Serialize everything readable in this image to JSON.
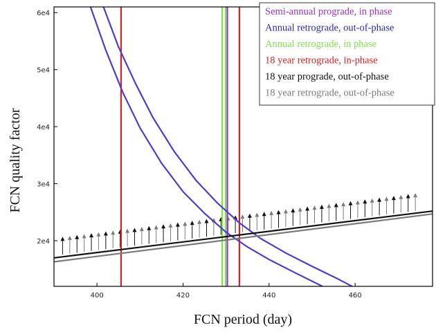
{
  "chart_data": {
    "type": "line",
    "xlabel": "FCN period (day)",
    "ylabel": "FCN quality factor",
    "xlim": [
      390,
      478
    ],
    "ylim": [
      12000,
      61000
    ],
    "x_ticks": [
      {
        "value": 400,
        "label": "400"
      },
      {
        "value": 420,
        "label": "420"
      },
      {
        "value": 440,
        "label": "440"
      },
      {
        "value": 460,
        "label": "460"
      }
    ],
    "y_ticks": [
      {
        "value": 20000,
        "label": "2e4"
      },
      {
        "value": 30000,
        "label": "3e4"
      },
      {
        "value": 40000,
        "label": "4e4"
      },
      {
        "value": 50000,
        "label": "5e4"
      },
      {
        "value": 60000,
        "label": "6e4"
      }
    ],
    "legend_position": "top-right",
    "legend": [
      {
        "label": "Semi-annual prograde, in phase",
        "color": "#9b30d0"
      },
      {
        "label": "Annual retrograde, out-of-phase",
        "color": "#2a2aa8"
      },
      {
        "label": "Annual retrograde, in phase",
        "color": "#7fe24a"
      },
      {
        "label": "18 year retrograde, in-phase",
        "color": "#dd1f1f"
      },
      {
        "label": "18 year prograde, out-of-phase",
        "color": "#111111"
      },
      {
        "label": "18 year retrograde, out-of-phase",
        "color": "#7a7a7a"
      }
    ],
    "series": [
      {
        "color": "#9b30d0",
        "kind": "vertical",
        "x": 430.3
      },
      {
        "color": "#7fe24a",
        "kind": "vertical",
        "x": 429.1
      },
      {
        "color": "#7fe24a",
        "kind": "vertical",
        "x": 429.9
      },
      {
        "color": "#dd1f1f",
        "kind": "vertical",
        "x": 405.6
      },
      {
        "color": "#dd1f1f",
        "kind": "vertical",
        "x": 433.1
      },
      {
        "color": "#4b3bd0",
        "kind": "curve",
        "x": [
          398.5,
          402,
          406,
          410,
          415,
          420,
          425,
          430,
          435,
          440,
          446,
          452.4
        ],
        "y": [
          61000,
          53500,
          46000,
          39800,
          33600,
          28600,
          24800,
          21500,
          18900,
          16700,
          14400,
          12000
        ]
      },
      {
        "color": "#4b3bd0",
        "kind": "curve",
        "x": [
          401.5,
          405,
          409,
          413,
          418,
          423,
          428,
          433,
          438,
          444,
          450,
          456,
          459.3
        ],
        "y": [
          61000,
          54000,
          47500,
          41600,
          35600,
          30600,
          26600,
          23200,
          20400,
          17800,
          15500,
          13300,
          12000
        ]
      },
      {
        "color": "#111111",
        "kind": "curve",
        "x": [
          390,
          478
        ],
        "y": [
          17000,
          25200
        ]
      },
      {
        "color": "#7a7a7a",
        "kind": "curve",
        "x": [
          390,
          478
        ],
        "y": [
          16300,
          24700
        ]
      }
    ],
    "arrows": {
      "x_start": 392,
      "x_end": 474,
      "count": 50,
      "dy": 3000,
      "colors": [
        "#111111",
        "#7a7a7a"
      ]
    }
  }
}
